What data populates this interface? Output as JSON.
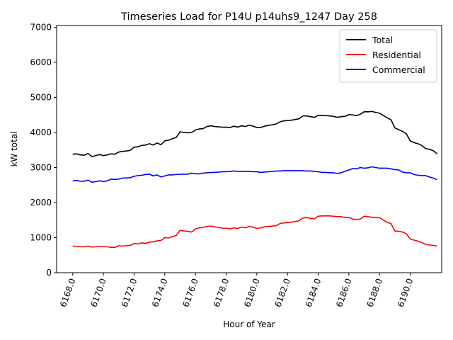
{
  "chart_data": {
    "type": "line",
    "title": "Timeseries Load for P14U p14uhs9_1247  Day 258",
    "xlabel": "Hour of Year",
    "ylabel": "kW total",
    "xlim": [
      6166.95,
      6192.05
    ],
    "ylim": [
      0,
      7050
    ],
    "xticks": [
      6168,
      6170,
      6172,
      6174,
      6176,
      6178,
      6180,
      6182,
      6184,
      6186,
      6188,
      6190
    ],
    "xtick_labels": [
      "6168.0",
      "6170.0",
      "6172.0",
      "6174.0",
      "6176.0",
      "6178.0",
      "6180.0",
      "6182.0",
      "6184.0",
      "6186.0",
      "6188.0",
      "6190.0"
    ],
    "yticks": [
      0,
      1000,
      2000,
      3000,
      4000,
      5000,
      6000,
      7000
    ],
    "ytick_labels": [
      "0",
      "1000",
      "2000",
      "3000",
      "4000",
      "5000",
      "6000",
      "7000"
    ],
    "grid": false,
    "legend_position": "top-right",
    "x": [
      6168.0,
      6168.25,
      6168.5,
      6168.75,
      6169.0,
      6169.25,
      6169.5,
      6169.75,
      6170.0,
      6170.25,
      6170.5,
      6170.75,
      6171.0,
      6171.25,
      6171.5,
      6171.75,
      6172.0,
      6172.25,
      6172.5,
      6172.75,
      6173.0,
      6173.25,
      6173.5,
      6173.75,
      6174.0,
      6174.25,
      6174.5,
      6174.75,
      6175.0,
      6175.25,
      6175.5,
      6175.75,
      6176.0,
      6176.25,
      6176.5,
      6176.75,
      6177.0,
      6177.25,
      6177.5,
      6177.75,
      6178.0,
      6178.25,
      6178.5,
      6178.75,
      6179.0,
      6179.25,
      6179.5,
      6179.75,
      6180.0,
      6180.25,
      6180.5,
      6180.75,
      6181.0,
      6181.25,
      6181.5,
      6181.75,
      6182.0,
      6182.25,
      6182.5,
      6182.75,
      6183.0,
      6183.25,
      6183.5,
      6183.75,
      6184.0,
      6184.25,
      6184.5,
      6184.75,
      6185.0,
      6185.25,
      6185.5,
      6185.75,
      6186.0,
      6186.25,
      6186.5,
      6186.75,
      6187.0,
      6187.25,
      6187.5,
      6187.75,
      6188.0,
      6188.25,
      6188.5,
      6188.75,
      6189.0,
      6189.25,
      6189.5,
      6189.75,
      6190.0,
      6190.25,
      6190.5,
      6190.75,
      6191.0,
      6191.25,
      6191.5,
      6191.75
    ],
    "series": [
      {
        "name": "Total",
        "color": "#000000",
        "values": [
          3380,
          3390,
          3360,
          3350,
          3400,
          3310,
          3340,
          3370,
          3340,
          3360,
          3390,
          3380,
          3440,
          3460,
          3470,
          3490,
          3580,
          3590,
          3630,
          3640,
          3680,
          3640,
          3700,
          3650,
          3760,
          3780,
          3820,
          3860,
          4020,
          4000,
          3990,
          4000,
          4070,
          4100,
          4110,
          4170,
          4190,
          4170,
          4160,
          4150,
          4150,
          4140,
          4180,
          4150,
          4190,
          4170,
          4210,
          4180,
          4140,
          4140,
          4180,
          4200,
          4220,
          4240,
          4300,
          4330,
          4340,
          4350,
          4370,
          4390,
          4470,
          4470,
          4450,
          4430,
          4490,
          4480,
          4480,
          4470,
          4460,
          4430,
          4450,
          4460,
          4510,
          4500,
          4480,
          4520,
          4590,
          4590,
          4600,
          4570,
          4550,
          4480,
          4420,
          4360,
          4130,
          4080,
          4030,
          3960,
          3760,
          3710,
          3680,
          3630,
          3540,
          3520,
          3480,
          3390
        ]
      },
      {
        "name": "Residential",
        "color": "#ff0000",
        "values": [
          760,
          750,
          740,
          740,
          760,
          730,
          740,
          750,
          740,
          740,
          720,
          720,
          770,
          760,
          770,
          780,
          830,
          820,
          850,
          840,
          870,
          880,
          910,
          920,
          1000,
          990,
          1030,
          1060,
          1210,
          1190,
          1180,
          1160,
          1250,
          1280,
          1290,
          1320,
          1330,
          1310,
          1290,
          1270,
          1270,
          1250,
          1280,
          1260,
          1300,
          1280,
          1320,
          1300,
          1260,
          1280,
          1310,
          1320,
          1330,
          1340,
          1400,
          1420,
          1430,
          1440,
          1460,
          1480,
          1560,
          1570,
          1550,
          1540,
          1610,
          1620,
          1620,
          1620,
          1610,
          1600,
          1600,
          1570,
          1580,
          1530,
          1520,
          1530,
          1610,
          1600,
          1580,
          1570,
          1570,
          1500,
          1440,
          1400,
          1190,
          1180,
          1160,
          1110,
          960,
          930,
          900,
          860,
          810,
          790,
          780,
          760
        ]
      },
      {
        "name": "Commercial",
        "color": "#0000ff",
        "values": [
          2620,
          2630,
          2610,
          2610,
          2640,
          2580,
          2600,
          2620,
          2600,
          2620,
          2670,
          2660,
          2670,
          2700,
          2700,
          2710,
          2750,
          2770,
          2780,
          2800,
          2810,
          2760,
          2790,
          2730,
          2760,
          2790,
          2790,
          2800,
          2810,
          2810,
          2810,
          2840,
          2820,
          2820,
          2840,
          2850,
          2860,
          2860,
          2870,
          2880,
          2880,
          2890,
          2900,
          2890,
          2890,
          2890,
          2890,
          2880,
          2880,
          2860,
          2870,
          2880,
          2890,
          2900,
          2900,
          2910,
          2910,
          2910,
          2910,
          2910,
          2910,
          2900,
          2900,
          2890,
          2880,
          2860,
          2860,
          2850,
          2850,
          2830,
          2850,
          2890,
          2930,
          2970,
          2960,
          3000,
          2980,
          2990,
          3020,
          3000,
          2980,
          2980,
          2980,
          2960,
          2940,
          2930,
          2870,
          2850,
          2850,
          2800,
          2780,
          2770,
          2770,
          2730,
          2700,
          2650
        ]
      }
    ]
  }
}
